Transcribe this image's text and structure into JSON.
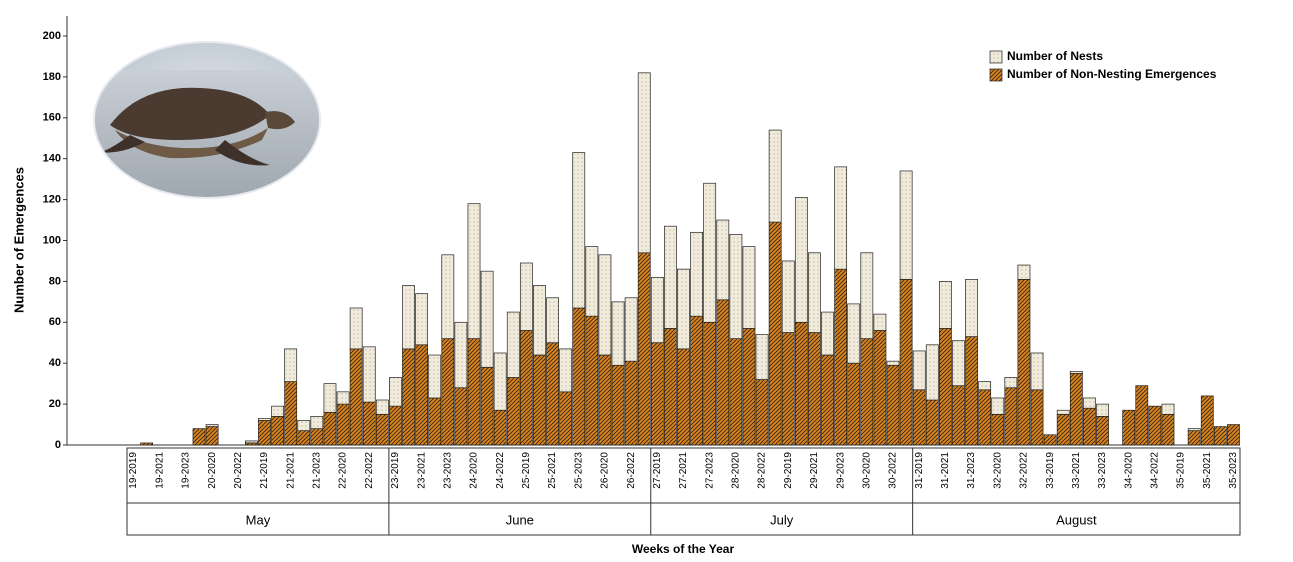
{
  "chart_data": {
    "type": "stacked-bar",
    "y_label": "Number of Emergences",
    "x_label": "Weeks of the Year",
    "ylim": [
      0,
      200
    ],
    "yticks": [
      0,
      20,
      40,
      60,
      80,
      100,
      120,
      140,
      160,
      180,
      200
    ],
    "legend": "top-right",
    "categories": [
      "19-2019",
      null,
      "19-2021",
      null,
      "19-2023",
      null,
      "20-2020",
      null,
      "20-2022",
      null,
      "21-2019",
      null,
      "21-2021",
      null,
      "21-2023",
      null,
      "22-2020",
      null,
      "22-2022",
      null,
      "23-2019",
      null,
      "23-2021",
      null,
      "23-2023",
      null,
      "24-2020",
      null,
      "24-2022",
      null,
      "25-2019",
      null,
      "25-2021",
      null,
      "25-2023",
      null,
      "26-2020",
      null,
      "26-2022",
      null,
      "27-2019",
      null,
      "27-2021",
      null,
      "27-2023",
      null,
      "28-2020",
      null,
      "28-2022",
      null,
      "29-2019",
      null,
      "29-2021",
      null,
      "29-2023",
      null,
      "30-2020",
      null,
      "30-2022",
      null,
      "31-2019",
      null,
      "31-2021",
      null,
      "31-2023",
      null,
      "32-2020",
      null,
      "32-2022",
      null,
      "33-2019",
      null,
      "33-2021",
      null,
      "33-2023",
      null,
      "34-2020",
      null,
      "34-2022",
      null,
      "35-2019",
      null,
      "35-2021",
      null,
      "35-2023"
    ],
    "x_groups": [
      {
        "label": "May",
        "span": 20
      },
      {
        "label": "June",
        "span": 20
      },
      {
        "label": "July",
        "span": 20
      },
      {
        "label": "August",
        "span": 25
      }
    ],
    "series": [
      {
        "name": "Number of Non-Nesting Emergences",
        "color": "#d9841f",
        "values": [
          0,
          1,
          0,
          0,
          0,
          8,
          9,
          0,
          0,
          1,
          12,
          14,
          31,
          7,
          8,
          16,
          20,
          47,
          21,
          15,
          19,
          47,
          49,
          23,
          52,
          28,
          52,
          38,
          17,
          33,
          56,
          44,
          50,
          26,
          67,
          63,
          44,
          39,
          41,
          94,
          50,
          57,
          47,
          63,
          60,
          71,
          52,
          57,
          32,
          109,
          55,
          60,
          55,
          44,
          86,
          40,
          52,
          56,
          39,
          81,
          27,
          22,
          57,
          29,
          53,
          27,
          15,
          28,
          81,
          27,
          5,
          15,
          35,
          18,
          14,
          0,
          17,
          29,
          19,
          15,
          0,
          7,
          24,
          9,
          10
        ]
      },
      {
        "name": "Number of Nests",
        "color": "#f1ebdc",
        "values": [
          0,
          0,
          0,
          0,
          0,
          0,
          1,
          0,
          0,
          1,
          1,
          5,
          16,
          5,
          6,
          14,
          6,
          20,
          27,
          7,
          14,
          31,
          25,
          21,
          41,
          32,
          66,
          47,
          28,
          32,
          33,
          34,
          22,
          21,
          76,
          34,
          49,
          31,
          31,
          88,
          32,
          50,
          39,
          41,
          68,
          39,
          51,
          40,
          22,
          45,
          35,
          61,
          39,
          21,
          50,
          29,
          42,
          8,
          2,
          53,
          19,
          27,
          23,
          22,
          28,
          4,
          8,
          5,
          7,
          18,
          0,
          2,
          1,
          5,
          6,
          0,
          0,
          0,
          0,
          5,
          0,
          1,
          0,
          0,
          0
        ]
      }
    ]
  }
}
